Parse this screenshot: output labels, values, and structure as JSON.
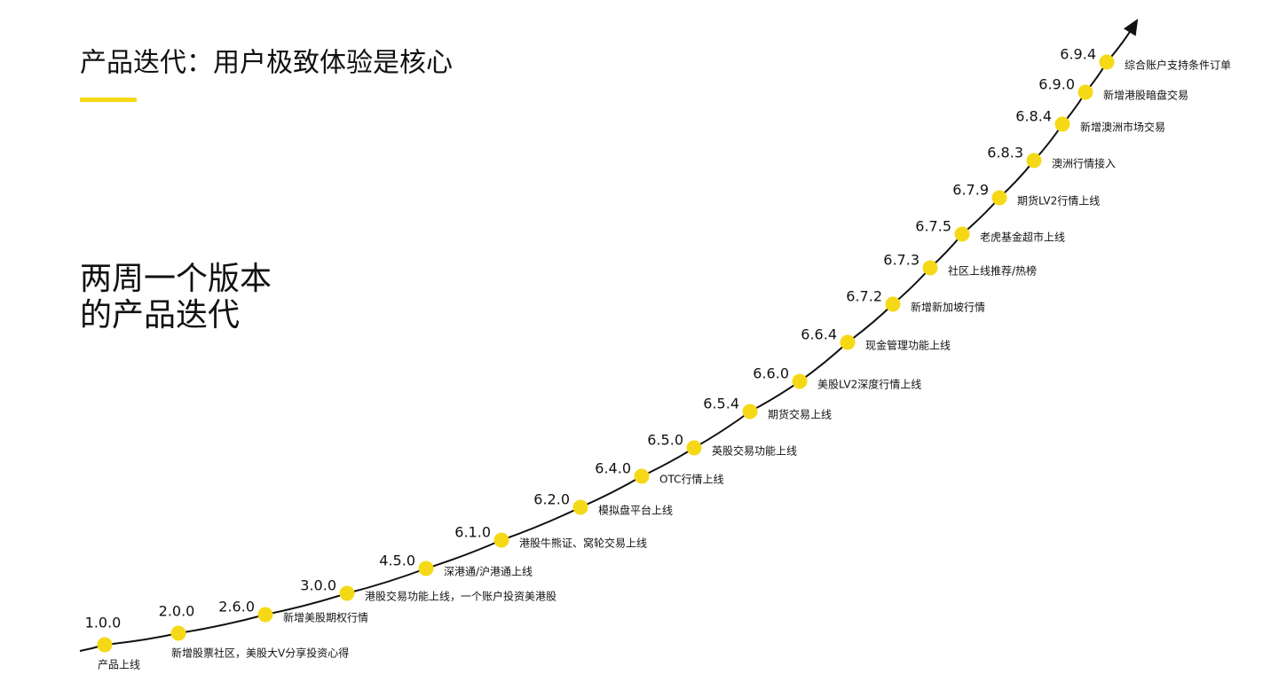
{
  "header": {
    "title": "产品迭代：用户极致体验是核心"
  },
  "subtitle": {
    "lines": [
      "两周一个版本",
      "的产品迭代"
    ]
  },
  "milestones": [
    {
      "version": "1.0.0",
      "label": "产品上线"
    },
    {
      "version": "2.0.0",
      "label": "新增股票社区，美股大V分享投资心得"
    },
    {
      "version": "2.6.0",
      "label": "新增美股期权行情"
    },
    {
      "version": "3.0.0",
      "label": "港股交易功能上线，一个账户投资美港股"
    },
    {
      "version": "4.5.0",
      "label": "深港通/沪港通上线"
    },
    {
      "version": "6.1.0",
      "label": "港股牛熊证、窝轮交易上线"
    },
    {
      "version": "6.2.0",
      "label": "模拟盘平台上线"
    },
    {
      "version": "6.4.0",
      "label": "OTC行情上线"
    },
    {
      "version": "6.5.0",
      "label": "英股交易功能上线"
    },
    {
      "version": "6.5.4",
      "label": "期货交易上线"
    },
    {
      "version": "6.6.0",
      "label": "美股LV2深度行情上线"
    },
    {
      "version": "6.6.4",
      "label": "现金管理功能上线"
    },
    {
      "version": "6.7.2",
      "label": "新增新加坡行情"
    },
    {
      "version": "6.7.3",
      "label": "社区上线推荐/热榜"
    },
    {
      "version": "6.7.5",
      "label": "老虎基金超市上线"
    },
    {
      "version": "6.7.9",
      "label": "期货LV2行情上线"
    },
    {
      "version": "6.8.3",
      "label": "澳洲行情接入"
    },
    {
      "version": "6.8.4",
      "label": "新增澳洲市场交易"
    },
    {
      "version": "6.9.0",
      "label": "新增港股暗盘交易"
    },
    {
      "version": "6.9.4",
      "label": "综合账户支持条件订单"
    }
  ]
}
